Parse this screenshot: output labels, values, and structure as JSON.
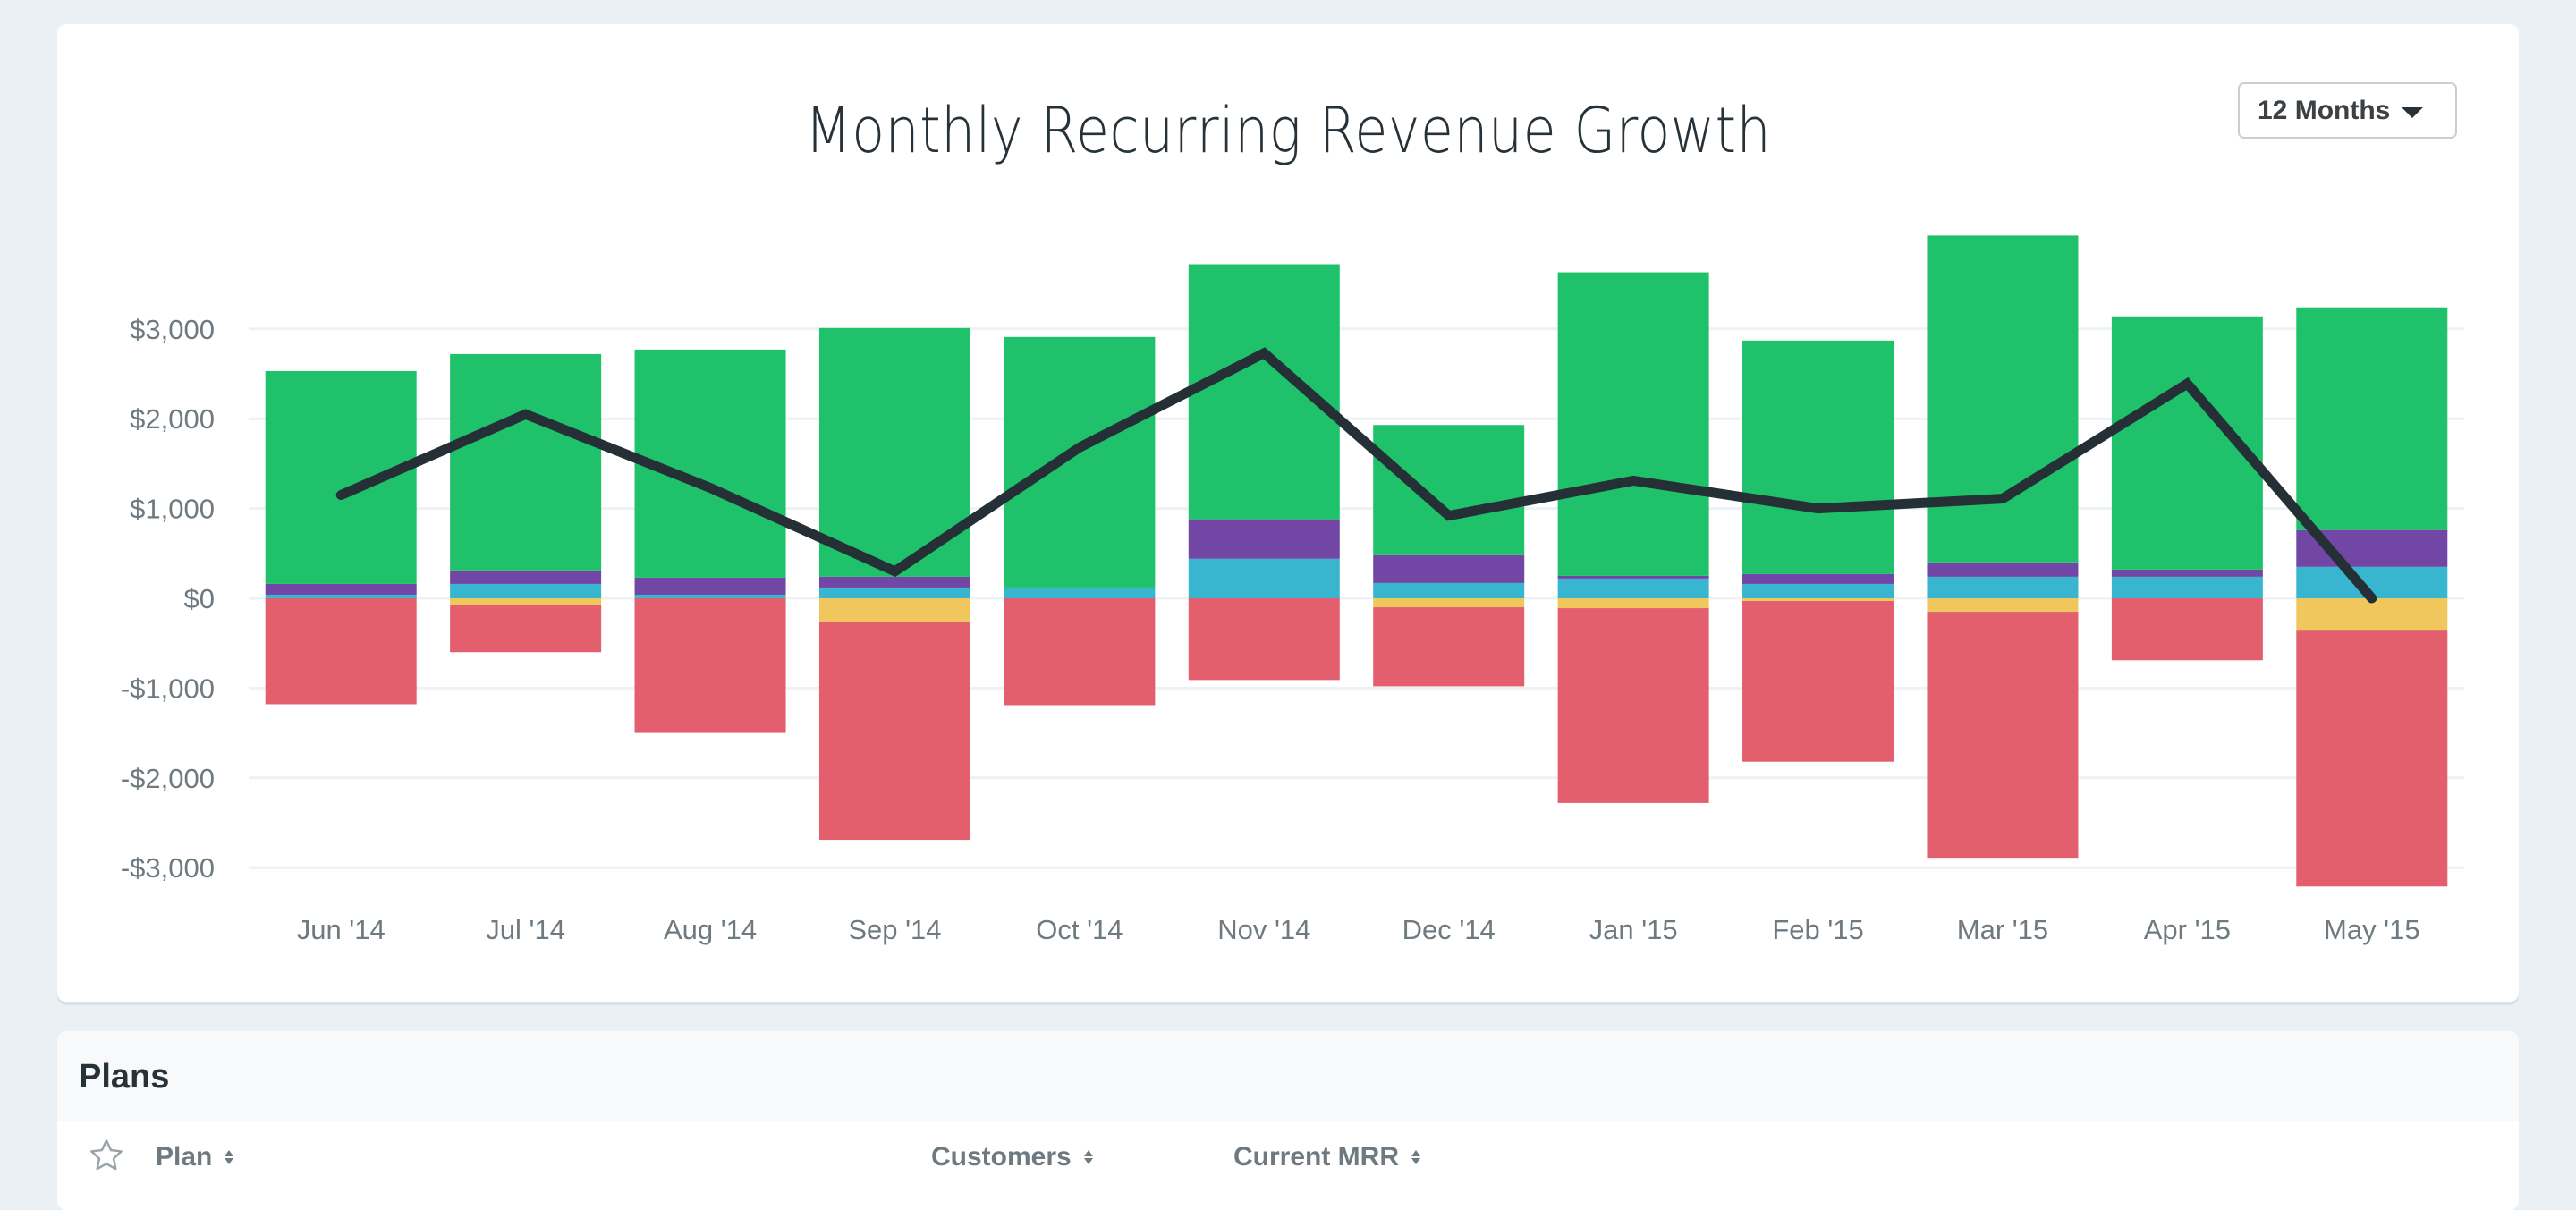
{
  "chart_card": {
    "range_select": {
      "value": "12 Months",
      "icon": "caret-down-icon"
    }
  },
  "plans": {
    "title": "Plans",
    "columns": [
      {
        "label": "Plan",
        "icon": "sort-icon"
      },
      {
        "label": "Customers",
        "icon": "sort-icon"
      },
      {
        "label": "Current MRR",
        "icon": "sort-icon"
      }
    ],
    "favorite_icon": "star-icon"
  },
  "chart_data": {
    "type": "bar",
    "stacked": true,
    "title": "Monthly Recurring Revenue Growth",
    "xlabel": "",
    "ylabel": "",
    "categories": [
      "Jun '14",
      "Jul '14",
      "Aug '14",
      "Sep '14",
      "Oct '14",
      "Nov '14",
      "Dec '14",
      "Jan '15",
      "Feb '15",
      "Mar '15",
      "Apr '15",
      "May '15"
    ],
    "y_ticks": [
      3000,
      2000,
      1000,
      0,
      -1000,
      -2000,
      -3000
    ],
    "y_tick_labels": [
      "$3,000",
      "$2,000",
      "$1,000",
      "$0",
      "-$1,000",
      "-$2,000",
      "-$3,000"
    ],
    "ylim": [
      -3300,
      4100
    ],
    "grid": true,
    "legend": "none",
    "series": [
      {
        "name": "Segment A (cyan)",
        "color": "#38b6cf",
        "sign": "positive",
        "values": [
          40,
          160,
          40,
          120,
          120,
          440,
          170,
          220,
          160,
          240,
          240,
          350
        ]
      },
      {
        "name": "Segment B (purple)",
        "color": "#7246a5",
        "sign": "positive",
        "values": [
          120,
          150,
          190,
          120,
          0,
          440,
          310,
          30,
          110,
          160,
          80,
          410
        ]
      },
      {
        "name": "Segment C (green)",
        "color": "#20c16b",
        "sign": "positive",
        "values": [
          2370,
          2410,
          2540,
          2770,
          2790,
          2840,
          1450,
          3380,
          2600,
          3640,
          2820,
          2480
        ]
      },
      {
        "name": "Segment D (yellow)",
        "color": "#f0c75c",
        "sign": "negative",
        "values": [
          0,
          -70,
          0,
          -260,
          0,
          0,
          -100,
          -110,
          -30,
          -150,
          0,
          -360
        ]
      },
      {
        "name": "Segment E (red)",
        "color": "#e35f6d",
        "sign": "negative",
        "values": [
          -1180,
          -530,
          -1500,
          -2430,
          -1190,
          -910,
          -880,
          -2170,
          -1790,
          -2740,
          -690,
          -2850
        ]
      }
    ],
    "line_series": {
      "name": "Net MRR",
      "color": "#243035",
      "values": [
        1150,
        2050,
        1230,
        300,
        1680,
        2730,
        920,
        1310,
        1000,
        1110,
        2390,
        0
      ]
    }
  }
}
